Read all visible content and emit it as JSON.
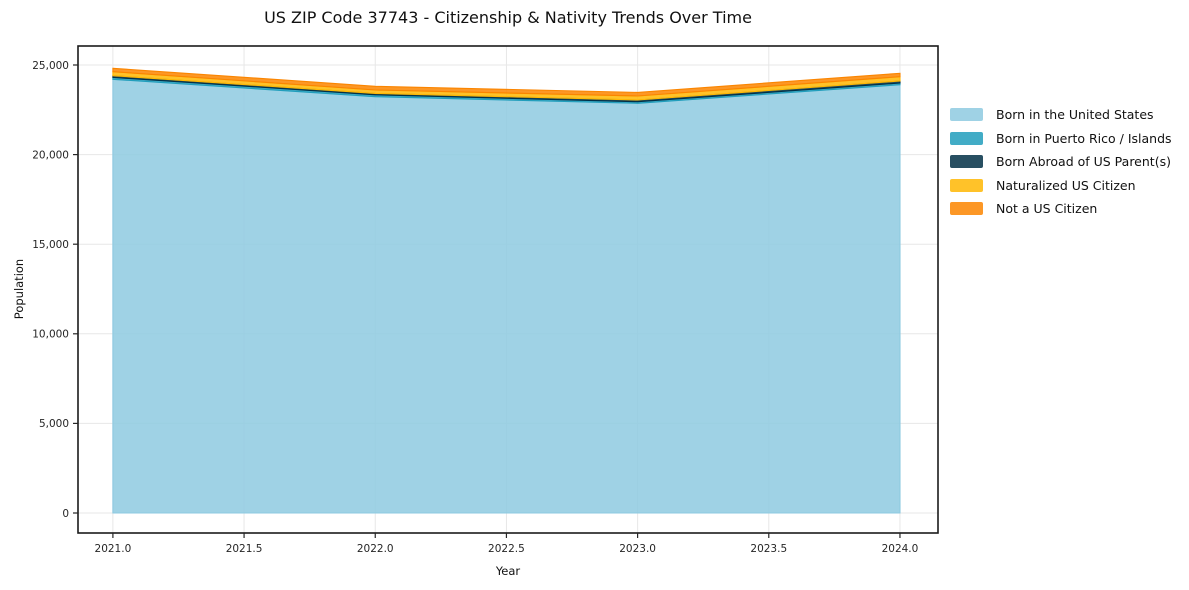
{
  "title": "US ZIP Code 37743 - Citizenship & Nativity Trends Over Time",
  "chart_data": {
    "type": "area",
    "stacked": true,
    "title": "US ZIP Code 37743 - Citizenship & Nativity Trends Over Time",
    "xlabel": "Year",
    "ylabel": "Population",
    "x": [
      2021,
      2022,
      2023,
      2024
    ],
    "series": [
      {
        "name": "Born in the United States",
        "color": "#8ECAE1",
        "values": [
          24200,
          23230,
          22860,
          23900
        ]
      },
      {
        "name": "Born in Puerto Rico / Islands",
        "color": "#219EBC",
        "values": [
          110,
          105,
          90,
          95
        ]
      },
      {
        "name": "Born Abroad of US Parent(s)",
        "color": "#023047",
        "values": [
          90,
          80,
          95,
          110
        ]
      },
      {
        "name": "Naturalized US Citizen",
        "color": "#FFB703",
        "values": [
          225,
          190,
          225,
          240
        ]
      },
      {
        "name": "Not a US Citizen",
        "color": "#FB8500",
        "values": [
          190,
          205,
          200,
          190
        ]
      }
    ],
    "stack_totals": [
      24815,
      23810,
      23470,
      24535
    ],
    "fill_alpha": 0.85,
    "xlim": [
      2020.867,
      2024.145
    ],
    "ylim": [
      -1116,
      26060
    ],
    "xticks": [
      2021.0,
      2021.5,
      2022.0,
      2022.5,
      2023.0,
      2023.5,
      2024.0
    ],
    "xtick_labels": [
      "2021.0",
      "2021.5",
      "2022.0",
      "2022.5",
      "2023.0",
      "2023.5",
      "2024.0"
    ],
    "yticks": [
      0,
      5000,
      10000,
      15000,
      20000,
      25000
    ],
    "ytick_labels": [
      "0",
      "5,000",
      "10,000",
      "15,000",
      "20,000",
      "25,000"
    ],
    "grid": true,
    "grid_color": "#e7e7e7",
    "spine_color": "#1a1a1a",
    "tick_color": "#262626",
    "legend_position": "right-outside"
  }
}
